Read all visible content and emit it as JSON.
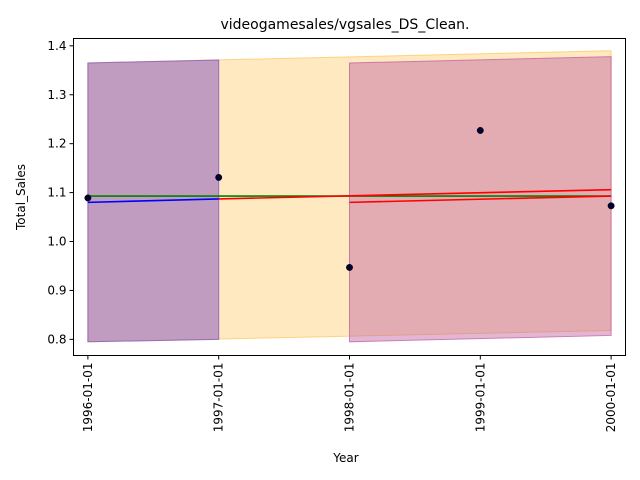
{
  "chart_data": {
    "type": "line",
    "title": "videogamesales/vgsales_DS_Clean.",
    "xlabel": "Year",
    "ylabel": "Total_Sales",
    "x_ticks": [
      "1996-01-01",
      "1997-01-01",
      "1998-01-01",
      "1999-01-01",
      "2000-01-01"
    ],
    "y_ticks": [
      "0.8",
      "0.9",
      "1.0",
      "1.1",
      "1.2",
      "1.3",
      "1.4"
    ],
    "xlim": [
      -0.11,
      4.11
    ],
    "ylim": [
      0.767,
      1.415
    ],
    "grid": false,
    "points": {
      "x": [
        "1996-01-01",
        "1997-01-01",
        "1998-01-01",
        "1999-01-01",
        "2000-01-01"
      ],
      "y": [
        1.089,
        1.131,
        0.947,
        1.227,
        1.073
      ],
      "color": "#000033"
    },
    "bands": [
      {
        "x": [
          0,
          4
        ],
        "lower": [
          0.795,
          0.818
        ],
        "upper": [
          1.365,
          1.39
        ],
        "color": "#ffc04d",
        "opacity": 0.35
      },
      {
        "x": [
          0,
          1
        ],
        "lower": [
          0.795,
          0.8
        ],
        "upper": [
          1.365,
          1.371
        ],
        "color": "#8c5fbf",
        "opacity": 0.55
      },
      {
        "x": [
          2,
          4
        ],
        "lower": [
          0.795,
          0.808
        ],
        "upper": [
          1.365,
          1.378
        ],
        "color": "#c060a0",
        "opacity": 0.45
      }
    ],
    "lines": [
      {
        "x": [
          0,
          4
        ],
        "y": [
          1.093,
          1.093
        ],
        "color": "#008000"
      },
      {
        "x": [
          0,
          1
        ],
        "y": [
          1.08,
          1.087
        ],
        "color": "#0000ff"
      },
      {
        "x": [
          1,
          4
        ],
        "y": [
          1.087,
          1.106
        ],
        "color": "#ff0000"
      },
      {
        "x": [
          2,
          4
        ],
        "y": [
          1.08,
          1.093
        ],
        "color": "#ff0000"
      }
    ]
  }
}
